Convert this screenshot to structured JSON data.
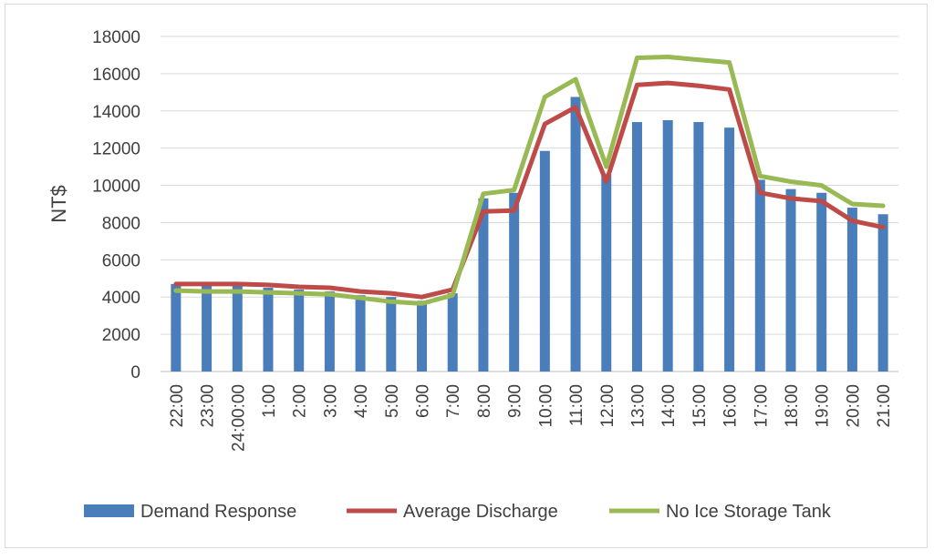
{
  "chart_data": {
    "type": "bar+line",
    "title": "",
    "xlabel": "",
    "ylabel": "NT$",
    "ylim": [
      0,
      18000
    ],
    "yticks": [
      0,
      2000,
      4000,
      6000,
      8000,
      10000,
      12000,
      14000,
      16000,
      18000
    ],
    "ytick_labels": [
      "0",
      "2000",
      "4000",
      "6000",
      "8000",
      "10000",
      "12000",
      "14000",
      "16000",
      "18000"
    ],
    "grid": true,
    "legend_position": "bottom",
    "categories": [
      "22:00",
      "23:00",
      "24:00:00",
      "1:00",
      "2:00",
      "3:00",
      "4:00",
      "5:00",
      "6:00",
      "7:00",
      "8:00",
      "9:00",
      "10:00",
      "11:00",
      "12:00",
      "13:00",
      "14:00",
      "15:00",
      "16:00",
      "17:00",
      "18:00",
      "19:00",
      "20:00",
      "21:00"
    ],
    "series": [
      {
        "name": "Demand Response",
        "kind": "bar",
        "color": "#4a7ebb",
        "values": [
          4700,
          4650,
          4600,
          4500,
          4400,
          4300,
          4100,
          4000,
          3800,
          4200,
          9300,
          9600,
          11850,
          14750,
          10600,
          13400,
          13500,
          13400,
          13100,
          10300,
          9800,
          9600,
          8800,
          8450
        ]
      },
      {
        "name": "Average Discharge",
        "kind": "line",
        "color": "#be4b48",
        "values": [
          4700,
          4700,
          4700,
          4650,
          4550,
          4500,
          4300,
          4200,
          4000,
          4400,
          8600,
          8650,
          13300,
          14200,
          10200,
          15400,
          15500,
          15350,
          15150,
          9600,
          9300,
          9150,
          8100,
          7750
        ]
      },
      {
        "name": "No Ice Storage Tank",
        "kind": "line",
        "color": "#98b954",
        "values": [
          4350,
          4300,
          4300,
          4250,
          4200,
          4150,
          3950,
          3750,
          3650,
          4100,
          9550,
          9750,
          14750,
          15700,
          11000,
          16850,
          16900,
          16750,
          16600,
          10500,
          10200,
          10000,
          9000,
          8900
        ]
      }
    ]
  }
}
